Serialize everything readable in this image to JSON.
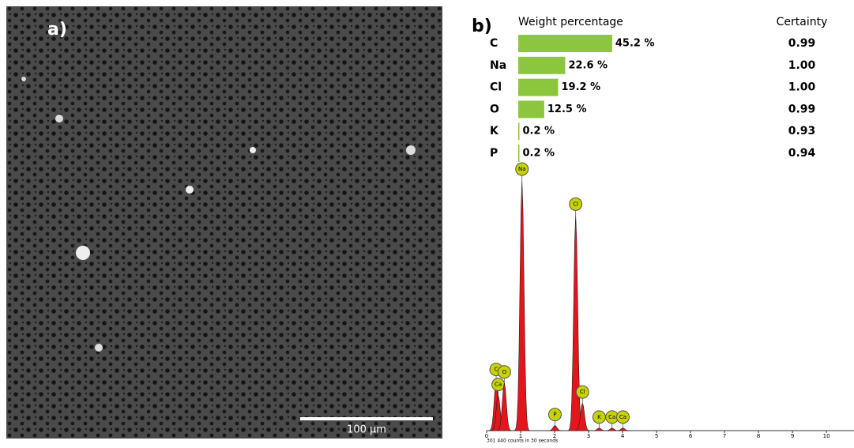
{
  "panel_a": {
    "label": "a)",
    "scale_bar": "100 µm"
  },
  "panel_b": {
    "label": "b)",
    "headers": {
      "weight": "Weight percentage",
      "certainty": "Certainty"
    },
    "rows": [
      {
        "element": "C",
        "weight": 45.2,
        "weight_label": "45.2 %",
        "certainty": "0.99"
      },
      {
        "element": "Na",
        "weight": 22.6,
        "weight_label": "22.6 %",
        "certainty": "1.00"
      },
      {
        "element": "Cl",
        "weight": 19.2,
        "weight_label": "19.2 %",
        "certainty": "1.00"
      },
      {
        "element": "O",
        "weight": 12.5,
        "weight_label": "12.5 %",
        "certainty": "0.99"
      },
      {
        "element": "K",
        "weight": 0.2,
        "weight_label": "0.2 %",
        "certainty": "0.93"
      },
      {
        "element": "P",
        "weight": 0.2,
        "weight_label": "0.2 %",
        "certainty": "0.94"
      }
    ],
    "bar_color": "#8cc63f"
  },
  "spectrum": {
    "type": "spectrum",
    "xlim": [
      0,
      10.8
    ],
    "xticks": [
      0,
      1,
      2,
      3,
      4,
      5,
      6,
      7,
      8,
      9,
      10
    ],
    "ylim": [
      0,
      100
    ],
    "color": "#e3161c",
    "note": "301 440 counts in 30 seconds",
    "peaks": [
      {
        "label": "C",
        "x": 0.28,
        "y": 20
      },
      {
        "label": "Ca",
        "x": 0.34,
        "y": 14
      },
      {
        "label": "O",
        "x": 0.52,
        "y": 19
      },
      {
        "label": "Na",
        "x": 1.04,
        "y": 100
      },
      {
        "label": "P",
        "x": 2.01,
        "y": 2
      },
      {
        "label": "Cl",
        "x": 2.62,
        "y": 86
      },
      {
        "label": "Cl",
        "x": 2.82,
        "y": 11
      },
      {
        "label": "K",
        "x": 3.31,
        "y": 1
      },
      {
        "label": "Ca",
        "x": 3.69,
        "y": 1
      },
      {
        "label": "Ca",
        "x": 4.01,
        "y": 1
      }
    ]
  }
}
